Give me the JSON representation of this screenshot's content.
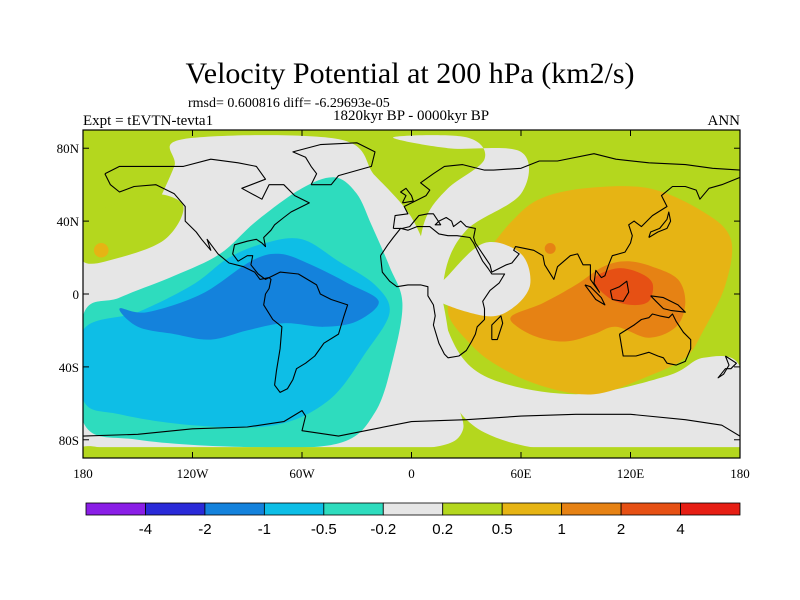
{
  "chart_data": {
    "type": "heatmap",
    "title": "Velocity Potential at 200 hPa (km2/s)",
    "stats_line": "rmsd= 0.600816 diff= -6.29693e-05",
    "left_label": "Expt = tEVTN-tevta1",
    "center_label": "1820kyr BP - 0000kyr BP",
    "right_label": "ANN",
    "projection": "cylindrical equidistant, global",
    "x_range": [
      -180,
      180
    ],
    "y_range": [
      -90,
      90
    ],
    "x_ticks": [
      {
        "value": -180,
        "label": "180"
      },
      {
        "value": -120,
        "label": "120W"
      },
      {
        "value": -60,
        "label": "60W"
      },
      {
        "value": 0,
        "label": "0"
      },
      {
        "value": 60,
        "label": "60E"
      },
      {
        "value": 120,
        "label": "120E"
      },
      {
        "value": 180,
        "label": "180"
      }
    ],
    "y_ticks": [
      {
        "value": 80,
        "label": "80N"
      },
      {
        "value": 40,
        "label": "40N"
      },
      {
        "value": 0,
        "label": "0"
      },
      {
        "value": -40,
        "label": "40S"
      },
      {
        "value": -80,
        "label": "80S"
      }
    ],
    "colorbar": {
      "levels": [
        -4,
        -2,
        -1,
        -0.5,
        -0.2,
        0.2,
        0.5,
        1,
        2,
        4
      ],
      "labels": [
        "-4",
        "-2",
        "-1",
        "-0.5",
        "-0.2",
        "0.2",
        "0.5",
        "1",
        "2",
        "4"
      ],
      "colors": [
        "#8a1ee6",
        "#2a2ad8",
        "#1482dc",
        "#0ebee6",
        "#2edcbe",
        "#e6e6e6",
        "#b4d71e",
        "#e6b414",
        "#e68214",
        "#e65014",
        "#e61e14"
      ]
    },
    "field_regions": [
      {
        "name": "background",
        "color": "#b4d71e",
        "points": [
          [
            -180,
            90
          ],
          [
            180,
            90
          ],
          [
            180,
            -90
          ],
          [
            -180,
            -90
          ]
        ]
      },
      {
        "name": "near-zero-west",
        "color": "#e6e6e6",
        "points": [
          [
            -125,
            85
          ],
          [
            -40,
            85
          ],
          [
            -20,
            65
          ],
          [
            -2,
            45
          ],
          [
            8,
            25
          ],
          [
            15,
            5
          ],
          [
            20,
            -20
          ],
          [
            24,
            -55
          ],
          [
            28,
            -75
          ],
          [
            12,
            -84
          ],
          [
            -40,
            -86
          ],
          [
            -110,
            -86
          ],
          [
            -172,
            -84
          ],
          [
            -180,
            -72
          ],
          [
            -180,
            18
          ],
          [
            -150,
            30
          ],
          [
            -140,
            48
          ],
          [
            -130,
            70
          ]
        ]
      },
      {
        "name": "near-zero-east",
        "color": "#e6e6e6",
        "points": [
          [
            -10,
            86
          ],
          [
            30,
            86
          ],
          [
            40,
            74
          ],
          [
            20,
            58
          ],
          [
            8,
            42
          ],
          [
            4,
            20
          ],
          [
            6,
            0
          ],
          [
            10,
            -25
          ],
          [
            20,
            -55
          ],
          [
            40,
            -76
          ],
          [
            80,
            -86
          ],
          [
            140,
            -86
          ],
          [
            180,
            -84
          ],
          [
            180,
            -40
          ],
          [
            160,
            -35
          ],
          [
            140,
            -45
          ],
          [
            90,
            -55
          ],
          [
            40,
            -45
          ],
          [
            20,
            -20
          ],
          [
            18,
            10
          ],
          [
            30,
            35
          ],
          [
            60,
            55
          ],
          [
            60,
            78
          ],
          [
            20,
            80
          ]
        ]
      },
      {
        "name": "negative-weak",
        "color": "#2edcbe",
        "points": [
          [
            -180,
            -12
          ],
          [
            -160,
            -2
          ],
          [
            -130,
            10
          ],
          [
            -105,
            22
          ],
          [
            -85,
            40
          ],
          [
            -60,
            58
          ],
          [
            -42,
            64
          ],
          [
            -30,
            55
          ],
          [
            -22,
            38
          ],
          [
            -12,
            15
          ],
          [
            -5,
            -5
          ],
          [
            -10,
            -35
          ],
          [
            -20,
            -65
          ],
          [
            -40,
            -82
          ],
          [
            -90,
            -84
          ],
          [
            -150,
            -80
          ],
          [
            -180,
            -70
          ]
        ]
      },
      {
        "name": "negative-moderate",
        "color": "#0ebee6",
        "points": [
          [
            -180,
            -20
          ],
          [
            -150,
            -10
          ],
          [
            -120,
            5
          ],
          [
            -100,
            20
          ],
          [
            -80,
            28
          ],
          [
            -60,
            30
          ],
          [
            -40,
            18
          ],
          [
            -20,
            5
          ],
          [
            -12,
            -10
          ],
          [
            -25,
            -32
          ],
          [
            -45,
            -58
          ],
          [
            -75,
            -72
          ],
          [
            -120,
            -72
          ],
          [
            -160,
            -66
          ],
          [
            -180,
            -58
          ]
        ]
      },
      {
        "name": "negative-strong",
        "color": "#1482dc",
        "points": [
          [
            -160,
            -8
          ],
          [
            -145,
            -10
          ],
          [
            -115,
            0
          ],
          [
            -88,
            18
          ],
          [
            -72,
            22
          ],
          [
            -55,
            16
          ],
          [
            -35,
            6
          ],
          [
            -18,
            -4
          ],
          [
            -30,
            -15
          ],
          [
            -48,
            -18
          ],
          [
            -70,
            -16
          ],
          [
            -90,
            -20
          ],
          [
            -110,
            -25
          ],
          [
            -130,
            -22
          ],
          [
            -150,
            -18
          ]
        ]
      },
      {
        "name": "positive-moderate",
        "color": "#e6b414",
        "points": [
          [
            20,
            -10
          ],
          [
            25,
            8
          ],
          [
            40,
            22
          ],
          [
            55,
            40
          ],
          [
            70,
            52
          ],
          [
            95,
            58
          ],
          [
            130,
            58
          ],
          [
            160,
            45
          ],
          [
            175,
            30
          ],
          [
            172,
            5
          ],
          [
            160,
            -20
          ],
          [
            150,
            -35
          ],
          [
            130,
            -45
          ],
          [
            100,
            -55
          ],
          [
            70,
            -50
          ],
          [
            45,
            -38
          ],
          [
            30,
            -25
          ]
        ]
      },
      {
        "name": "positive-strong",
        "color": "#e68214",
        "points": [
          [
            55,
            -12
          ],
          [
            72,
            -5
          ],
          [
            90,
            5
          ],
          [
            105,
            15
          ],
          [
            118,
            18
          ],
          [
            132,
            15
          ],
          [
            146,
            8
          ],
          [
            150,
            -5
          ],
          [
            145,
            -18
          ],
          [
            130,
            -24
          ],
          [
            112,
            -18
          ],
          [
            100,
            -22
          ],
          [
            85,
            -26
          ],
          [
            70,
            -24
          ],
          [
            58,
            -18
          ]
        ]
      },
      {
        "name": "positive-peak",
        "color": "#e65014",
        "points": [
          [
            100,
            8
          ],
          [
            112,
            14
          ],
          [
            124,
            12
          ],
          [
            132,
            6
          ],
          [
            130,
            -4
          ],
          [
            120,
            -6
          ],
          [
            108,
            -2
          ]
        ]
      },
      {
        "name": "tropical-small-gray",
        "color": "#e6e6e6",
        "points": [
          [
            12,
            -2
          ],
          [
            20,
            10
          ],
          [
            40,
            28
          ],
          [
            60,
            22
          ],
          [
            65,
            5
          ],
          [
            55,
            -8
          ],
          [
            40,
            -12
          ]
        ]
      },
      {
        "name": "pacific-small-green",
        "color": "#b4d71e",
        "points": [
          [
            -180,
            40
          ],
          [
            -160,
            50
          ],
          [
            -140,
            55
          ],
          [
            -125,
            48
          ],
          [
            -135,
            30
          ],
          [
            -160,
            20
          ],
          [
            -180,
            18
          ]
        ]
      },
      {
        "name": "southern-cap-green",
        "color": "#b4d71e",
        "points": [
          [
            -180,
            -90
          ],
          [
            180,
            -90
          ],
          [
            180,
            -84
          ],
          [
            -180,
            -84
          ]
        ]
      }
    ],
    "small_blobs": [
      {
        "name": "pacific-positive-spot",
        "color": "#e6b414",
        "center": [
          -170,
          24
        ],
        "radius": 4
      },
      {
        "name": "india-positive-spot",
        "color": "#e68214",
        "center": [
          76,
          25
        ],
        "radius": 3
      }
    ]
  }
}
